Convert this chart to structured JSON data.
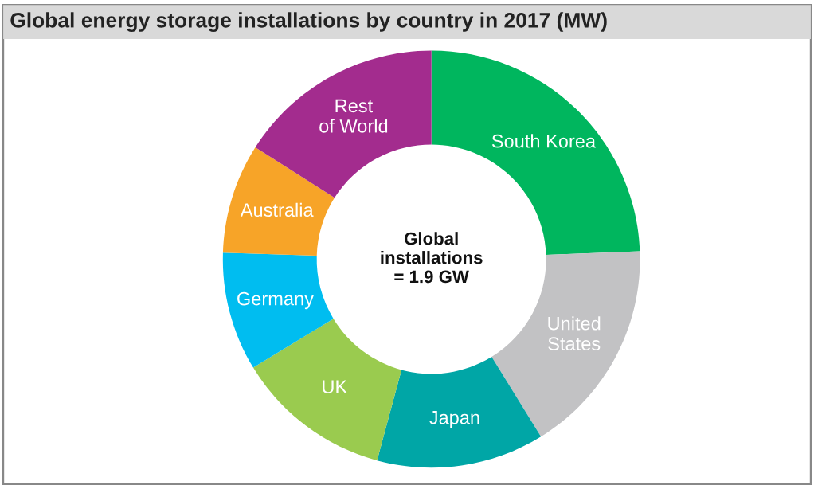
{
  "chart_data": {
    "type": "donut",
    "title": "Global energy storage installations by country in 2017 (MW)",
    "categories": [
      "South Korea",
      "United\nStates",
      "Japan",
      "UK",
      "Germany",
      "Australia",
      "Rest\nof World"
    ],
    "values": [
      24.4,
      16.8,
      13.0,
      12.1,
      9.2,
      8.5,
      16.0
    ],
    "colors": [
      "#00b65e",
      "#c2c2c4",
      "#00a6a6",
      "#9acb4f",
      "#00bdf0",
      "#f7a428",
      "#a32c8e"
    ],
    "annotations": [
      "Global\ninstallations\n= 1.9 GW"
    ],
    "legend": false
  }
}
